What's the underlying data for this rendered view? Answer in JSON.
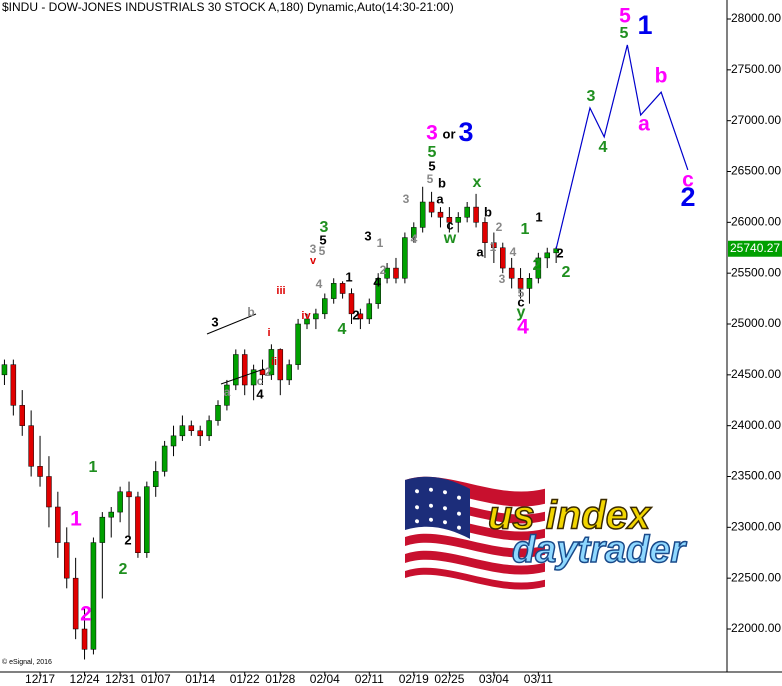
{
  "chart_data": {
    "type": "candlestick",
    "title": "$INDU - DOW-JONES INDUSTRIALS 30 STOCK A,180) Dynamic,Auto(14:30-21:00)",
    "x": [
      -4,
      -3,
      -2,
      -1,
      0,
      1,
      2,
      3,
      4,
      5,
      6,
      7,
      8,
      9,
      10,
      11,
      12,
      13,
      14,
      15,
      16,
      17,
      18,
      19,
      20,
      21,
      22,
      23,
      24,
      25,
      26,
      27,
      28,
      29,
      30,
      31,
      32,
      33,
      34,
      35,
      36,
      37,
      38,
      39,
      40,
      41,
      42,
      43,
      44,
      45,
      46,
      47,
      48,
      49,
      50,
      51,
      52,
      53,
      54,
      55,
      56,
      57,
      58
    ],
    "open": [
      24500,
      24600,
      24200,
      24000,
      23600,
      23500,
      23200,
      22850,
      22500,
      22000,
      21800,
      22850,
      23100,
      23150,
      23350,
      23300,
      22750,
      23400,
      23550,
      23800,
      23900,
      24000,
      23950,
      23900,
      24050,
      24200,
      24400,
      24700,
      24400,
      24550,
      24500,
      24750,
      24450,
      24600,
      25000,
      25050,
      25100,
      25250,
      25400,
      25300,
      25100,
      25050,
      25200,
      25450,
      25550,
      25450,
      25850,
      25950,
      26200,
      26100,
      26050,
      26000,
      26050,
      26150,
      26000,
      25800,
      25750,
      25550,
      25450,
      25350,
      25450,
      25650,
      25700
    ],
    "high": [
      24650,
      24650,
      24350,
      24150,
      23900,
      23700,
      23350,
      23000,
      22700,
      22200,
      22900,
      23150,
      23200,
      23400,
      23450,
      23350,
      23450,
      23650,
      23850,
      24000,
      24100,
      24050,
      24000,
      24100,
      24250,
      24450,
      24750,
      24750,
      24600,
      24650,
      24800,
      24760,
      24650,
      25050,
      25100,
      25150,
      25300,
      25450,
      25420,
      25350,
      25150,
      25250,
      25500,
      25600,
      25650,
      25900,
      26000,
      26350,
      26300,
      26150,
      26150,
      26100,
      26200,
      26280,
      26050,
      25900,
      25800,
      25650,
      25550,
      25500,
      25700,
      25750,
      25760
    ],
    "low": [
      24400,
      24100,
      23900,
      23500,
      23400,
      23000,
      22700,
      22400,
      21900,
      21700,
      21750,
      22300,
      22900,
      23050,
      22900,
      22700,
      22700,
      23300,
      23500,
      23700,
      23850,
      23900,
      23800,
      23850,
      24000,
      24150,
      24350,
      24300,
      24250,
      24400,
      24450,
      24300,
      24400,
      24550,
      24950,
      24950,
      25050,
      25200,
      25250,
      25000,
      24950,
      25000,
      25150,
      25400,
      25400,
      25400,
      25800,
      25900,
      26050,
      25950,
      25900,
      25900,
      26000,
      25950,
      25650,
      25600,
      25500,
      25350,
      25250,
      25200,
      25400,
      25550,
      25600
    ],
    "close": [
      24600,
      24200,
      24000,
      23600,
      23500,
      23200,
      22850,
      22500,
      22000,
      21800,
      22850,
      23100,
      23150,
      23350,
      23300,
      22750,
      23400,
      23550,
      23800,
      23900,
      24000,
      23950,
      23900,
      24050,
      24200,
      24400,
      24700,
      24400,
      24550,
      24500,
      24750,
      24450,
      24600,
      25000,
      25050,
      25100,
      25250,
      25400,
      25300,
      25100,
      25050,
      25200,
      25450,
      25550,
      25450,
      25850,
      25950,
      26200,
      26100,
      26050,
      26000,
      26050,
      26150,
      26000,
      25800,
      25750,
      25550,
      25450,
      25350,
      25450,
      25650,
      25700,
      25740.27
    ],
    "up_color": "#00a000",
    "down_color": "#e00000",
    "last_price_color": "#00a000",
    "projection": {
      "color": "#0000cc",
      "x": [
        58,
        61.8,
        63.4,
        66,
        67.5,
        69.8,
        72.8
      ],
      "values": [
        25740,
        27125,
        26840,
        27745,
        27055,
        27280,
        26515
      ]
    },
    "xlim": [
      -4.5,
      77.2
    ],
    "xticks": [
      {
        "value": 0,
        "label": "12/17"
      },
      {
        "value": 5,
        "label": "12/24"
      },
      {
        "value": 9,
        "label": "12/31"
      },
      {
        "value": 13,
        "label": "01/07"
      },
      {
        "value": 18,
        "label": "01/14"
      },
      {
        "value": 23,
        "label": "01/22"
      },
      {
        "value": 27,
        "label": "01/28"
      },
      {
        "value": 32,
        "label": "02/04"
      },
      {
        "value": 37,
        "label": "02/11"
      },
      {
        "value": 42,
        "label": "02/19"
      },
      {
        "value": 46,
        "label": "02/25"
      },
      {
        "value": 51,
        "label": "03/04"
      },
      {
        "value": 56,
        "label": "03/11"
      }
    ],
    "ylim": [
      21577,
      28187
    ],
    "yticks": [
      {
        "value": 22000,
        "label": "22000.00"
      },
      {
        "value": 22500,
        "label": "22500.00"
      },
      {
        "value": 23000,
        "label": "23000.00"
      },
      {
        "value": 23500,
        "label": "23500.00"
      },
      {
        "value": 24000,
        "label": "24000.00"
      },
      {
        "value": 24500,
        "label": "24500.00"
      },
      {
        "value": 25000,
        "label": "25000.00"
      },
      {
        "value": 25500,
        "label": "25500.00"
      },
      {
        "value": 26000,
        "label": "26000.00"
      },
      {
        "value": 26500,
        "label": "26500.00"
      },
      {
        "value": 27000,
        "label": "27000.00"
      },
      {
        "value": 27500,
        "label": "27500.00"
      },
      {
        "value": 28000,
        "label": "28000.00"
      }
    ],
    "annotations": [
      {
        "text": "1",
        "color": "#1f8f1f"
      },
      {
        "text": "1",
        "color": "#ff00ff"
      },
      {
        "text": "2",
        "color": "#000000"
      },
      {
        "text": "2",
        "color": "#1f8f1f"
      },
      {
        "text": "2",
        "color": "#ff00ff"
      },
      {
        "text": "3",
        "color": "#000000"
      },
      {
        "text": "a",
        "color": "#888888"
      },
      {
        "text": "c",
        "color": "#888888"
      },
      {
        "text": "4",
        "color": "#000000"
      },
      {
        "text": "b",
        "color": "#888888"
      },
      {
        "text": "i",
        "color": "#dd0000"
      },
      {
        "text": "ii",
        "color": "#dd0000"
      },
      {
        "text": "2",
        "color": "#888888"
      },
      {
        "text": "iii",
        "color": "#dd0000"
      },
      {
        "text": "iv",
        "color": "#dd0000"
      },
      {
        "text": "v",
        "color": "#dd0000"
      },
      {
        "text": "3",
        "color": "#888888"
      },
      {
        "text": "5",
        "color": "#888888"
      },
      {
        "text": "3",
        "color": "#1f8f1f"
      },
      {
        "text": "5",
        "color": "#000000"
      },
      {
        "text": "4",
        "color": "#888888"
      },
      {
        "text": "4",
        "color": "#1f8f1f"
      },
      {
        "text": "2",
        "color": "#000000"
      },
      {
        "text": "1",
        "color": "#000000"
      },
      {
        "text": "4",
        "color": "#000000"
      },
      {
        "text": "3",
        "color": "#000000"
      },
      {
        "text": "1",
        "color": "#888888"
      },
      {
        "text": "2",
        "color": "#888888"
      },
      {
        "text": "3",
        "color": "#888888"
      },
      {
        "text": "4",
        "color": "#888888"
      },
      {
        "text": "3",
        "color": "#ff00ff"
      },
      {
        "text": "or",
        "color": "#000000"
      },
      {
        "text": "3",
        "color": "#0000ee"
      },
      {
        "text": "5",
        "color": "#1f8f1f"
      },
      {
        "text": "5",
        "color": "#000000"
      },
      {
        "text": "5",
        "color": "#888888"
      },
      {
        "text": "b",
        "color": "#000000"
      },
      {
        "text": "a",
        "color": "#000000"
      },
      {
        "text": "c",
        "color": "#000000"
      },
      {
        "text": "w",
        "color": "#1f8f1f"
      },
      {
        "text": "x",
        "color": "#1f8f1f"
      },
      {
        "text": "b",
        "color": "#000000"
      },
      {
        "text": "2",
        "color": "#888888"
      },
      {
        "text": "1",
        "color": "#888888"
      },
      {
        "text": "a",
        "color": "#000000"
      },
      {
        "text": "3",
        "color": "#888888"
      },
      {
        "text": "4",
        "color": "#888888"
      },
      {
        "text": "1",
        "color": "#1f8f1f"
      },
      {
        "text": "1",
        "color": "#000000"
      },
      {
        "text": "2",
        "color": "#1f8f1f"
      },
      {
        "text": "2",
        "color": "#000000"
      },
      {
        "text": "2",
        "color": "#1f8f1f"
      },
      {
        "text": "5",
        "color": "#888888"
      },
      {
        "text": "c",
        "color": "#000000"
      },
      {
        "text": "y",
        "color": "#1f8f1f"
      },
      {
        "text": "4",
        "color": "#ff00ff"
      },
      {
        "text": "5",
        "color": "#ff00ff"
      },
      {
        "text": "5",
        "color": "#1f8f1f"
      },
      {
        "text": "1",
        "color": "#0000ee"
      },
      {
        "text": "3",
        "color": "#1f8f1f"
      },
      {
        "text": "4",
        "color": "#1f8f1f"
      },
      {
        "text": "b",
        "color": "#ff00ff"
      },
      {
        "text": "a",
        "color": "#ff00ff"
      },
      {
        "text": "c",
        "color": "#ff00ff"
      },
      {
        "text": "2",
        "color": "#0000ee"
      }
    ]
  },
  "logo": {
    "top": "us index",
    "bottom": "daytrader"
  },
  "copyright": "© eSignal, 2016"
}
